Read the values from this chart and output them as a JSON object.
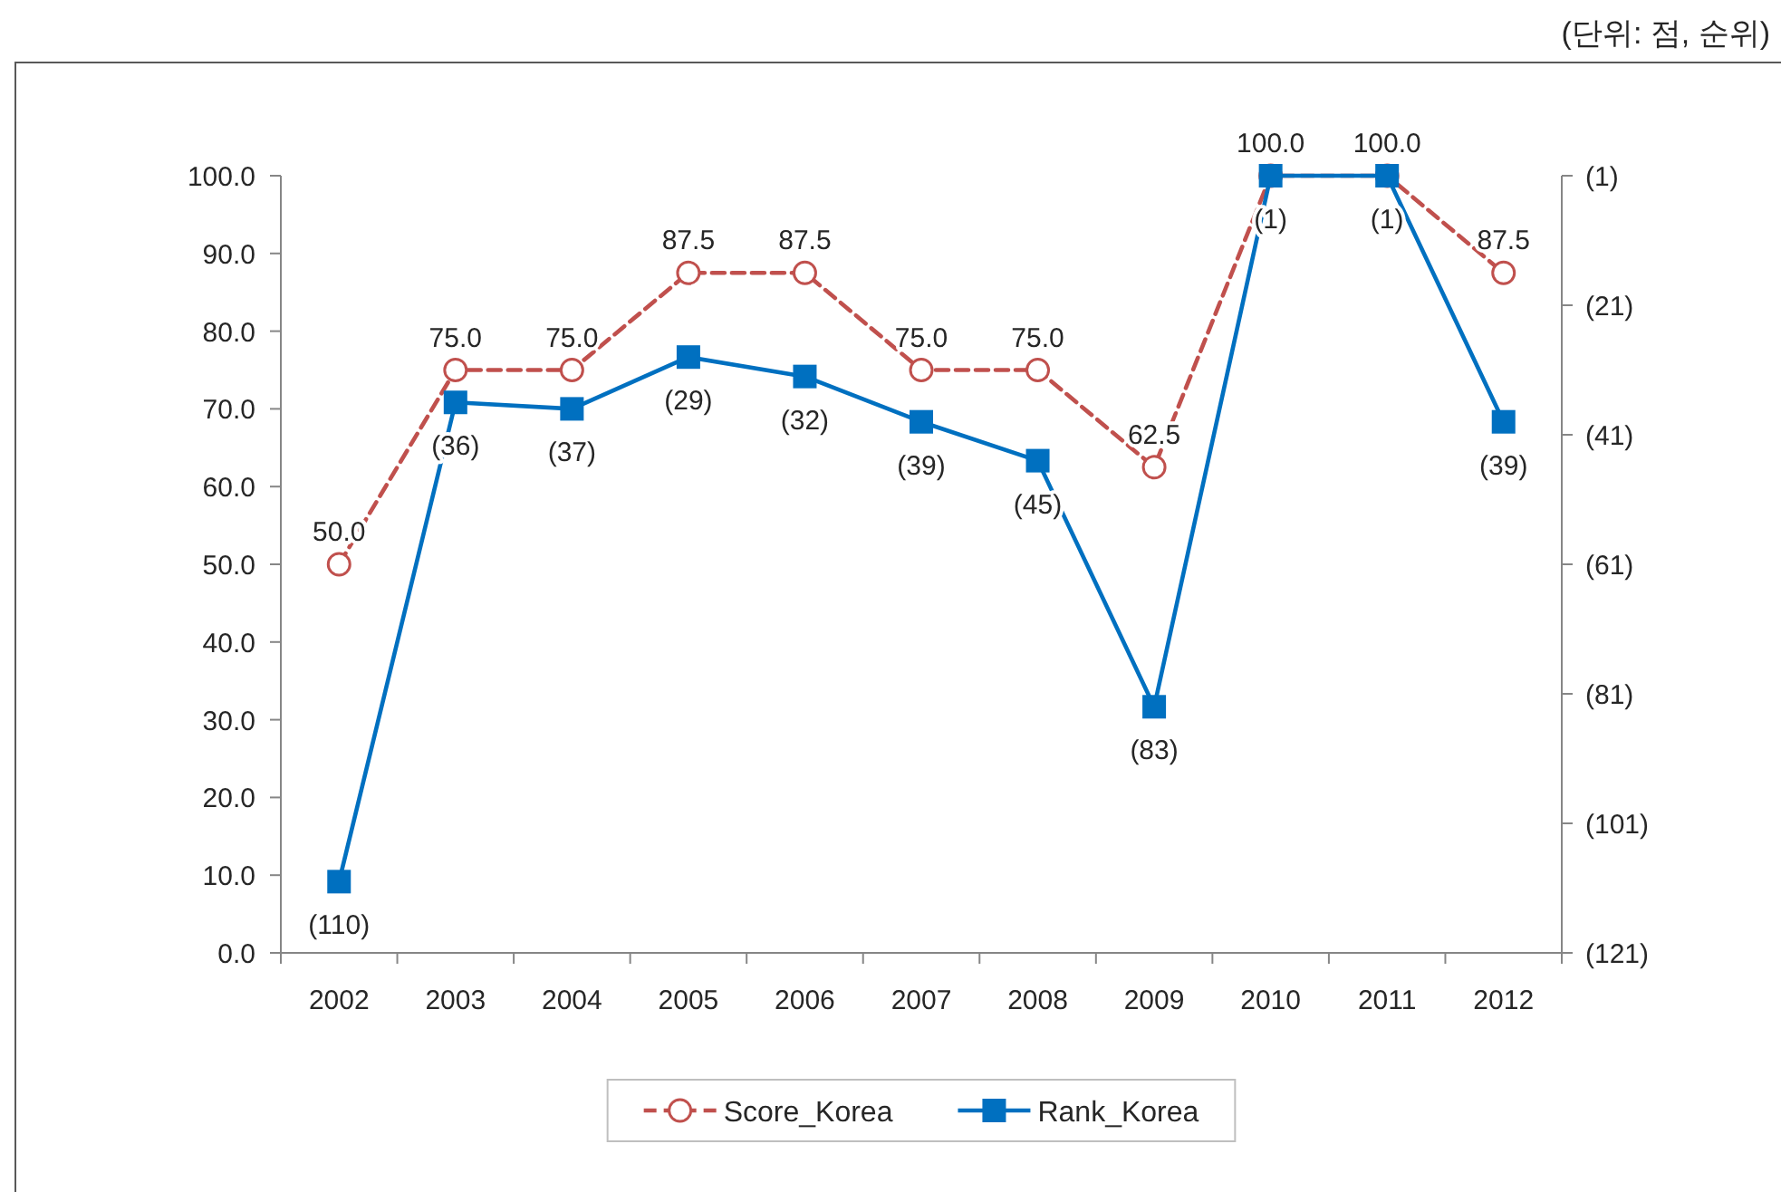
{
  "chart_data": {
    "type": "line",
    "categories": [
      "2002",
      "2003",
      "2004",
      "2005",
      "2006",
      "2007",
      "2008",
      "2009",
      "2010",
      "2011",
      "2012"
    ],
    "series": [
      {
        "name": "Score_Korea",
        "color": "#c0504d",
        "marker": "circle",
        "line_style": "dashed",
        "values": [
          50,
          75,
          75,
          87.5,
          87.5,
          75,
          75,
          62.5,
          100,
          100,
          87.5
        ],
        "value_labels": [
          "50.0",
          "75.0",
          "75.0",
          "87.5",
          "87.5",
          "75.0",
          "75.0",
          "62.5",
          "100.0",
          "100.0",
          "87.5"
        ]
      },
      {
        "name": "Rank_Korea",
        "color": "#0070c0",
        "marker": "square",
        "line_style": "solid",
        "axis": "y2",
        "values": [
          110,
          36,
          37,
          29,
          32,
          39,
          45,
          83,
          1,
          1,
          39
        ],
        "value_labels": [
          "(110)",
          "(36)",
          "(37)",
          "(29)",
          "(32)",
          "(39)",
          "(45)",
          "(83)",
          "(1)",
          "(1)",
          "(39)"
        ]
      }
    ],
    "ylim": [
      0,
      100
    ],
    "yticks": [
      {
        "value": 0,
        "label": "0.0"
      },
      {
        "value": 10,
        "label": "10.0"
      },
      {
        "value": 20,
        "label": "20.0"
      },
      {
        "value": 30,
        "label": "30.0"
      },
      {
        "value": 40,
        "label": "40.0"
      },
      {
        "value": 50,
        "label": "50.0"
      },
      {
        "value": 60,
        "label": "60.0"
      },
      {
        "value": 70,
        "label": "70.0"
      },
      {
        "value": 80,
        "label": "80.0"
      },
      {
        "value": 90,
        "label": "90.0"
      },
      {
        "value": 100,
        "label": "100.0"
      }
    ],
    "y2lim": [
      121,
      1
    ],
    "y2ticks": [
      {
        "value": 1,
        "label": "(1)"
      },
      {
        "value": 21,
        "label": "(21)"
      },
      {
        "value": 41,
        "label": "(41)"
      },
      {
        "value": 61,
        "label": "(61)"
      },
      {
        "value": 81,
        "label": "(81)"
      },
      {
        "value": 101,
        "label": "(101)"
      },
      {
        "value": 121,
        "label": "(121)"
      }
    ],
    "legend": "bottom",
    "annotations": [
      "(단위: 점, 순위)"
    ]
  }
}
